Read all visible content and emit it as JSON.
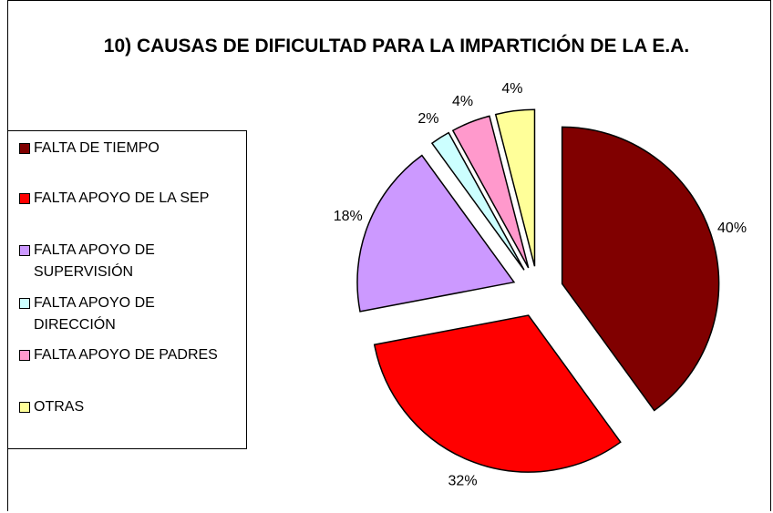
{
  "chart_data": {
    "type": "pie",
    "title": "10) CAUSAS DE DIFICULTAD PARA LA IMPARTICIÓN DE LA E.A.",
    "categories": [
      "FALTA DE TIEMPO",
      "FALTA APOYO DE LA SEP",
      "FALTA APOYO DE SUPERVISIÓN",
      "FALTA APOYO DE DIRECCIÓN",
      "FALTA APOYO DE PADRES",
      "OTRAS"
    ],
    "values": [
      40,
      32,
      18,
      2,
      4,
      4
    ],
    "value_labels": [
      "40%",
      "32%",
      "18%",
      "2%",
      "4%",
      "4%"
    ],
    "colors": [
      "#800000",
      "#ff0000",
      "#cc99ff",
      "#ccffff",
      "#ff99cc",
      "#ffff99"
    ],
    "legend": "left"
  }
}
